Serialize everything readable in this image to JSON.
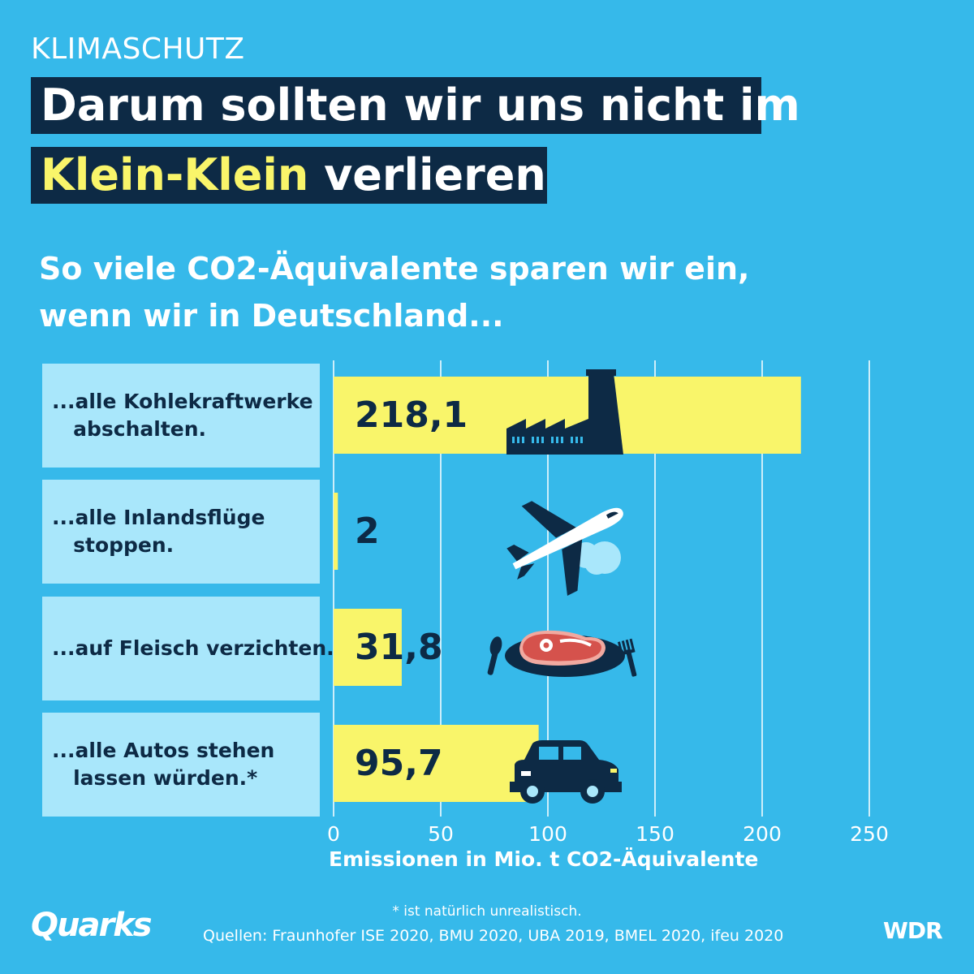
{
  "kicker": "KLIMASCHUTZ",
  "title": {
    "line1": "Darum sollten wir uns nicht im",
    "line2_highlight": "Klein-Klein",
    "line2_rest": " verlieren"
  },
  "subtitle": {
    "line1": "So viele CO2-Äquivalente sparen wir ein,",
    "line2": "wenn wir in Deutschland..."
  },
  "chart_data": {
    "type": "bar",
    "orientation": "horizontal",
    "categories": [
      "...alle Kohlekraftwerke abschalten.",
      "...alle Inlandsflüge stoppen.",
      "...auf Fleisch verzichten.",
      "...alle Autos stehen lassen würden.*"
    ],
    "values": [
      218.1,
      2,
      31.8,
      95.7
    ],
    "value_labels": [
      "218,1",
      "2",
      "31,8",
      "95,7"
    ],
    "xlim": [
      0,
      250
    ],
    "xticks": [
      0,
      50,
      100,
      150,
      200,
      250
    ],
    "xlabel": "Emissionen in Mio. t CO2-Äquivalente",
    "grid": true,
    "icons": [
      "factory-icon",
      "airplane-icon",
      "steak-plate-icon",
      "car-icon"
    ]
  },
  "labels": [
    {
      "line1": "...alle Kohlekraftwerke",
      "line2": "   abschalten."
    },
    {
      "line1": "...alle Inlandsflüge",
      "line2": "   stoppen."
    },
    {
      "line1": "...auf Fleisch verzichten.",
      "line2": ""
    },
    {
      "line1": "...alle Autos stehen",
      "line2": "   lassen würden.*"
    }
  ],
  "footnote": "* ist natürlich unrealistisch.",
  "sources": "Quellen: Fraunhofer ISE 2020, BMU 2020, UBA 2019, BMEL 2020, ifeu 2020",
  "brand_left": "Quarks",
  "brand_right": "WDR",
  "colors": {
    "background": "#36b9ea",
    "bar": "#f9f56a",
    "title_box": "#0d2a45",
    "label_box": "#a9e7fb",
    "dark": "#0d2a45",
    "steak": "#d5524c"
  }
}
